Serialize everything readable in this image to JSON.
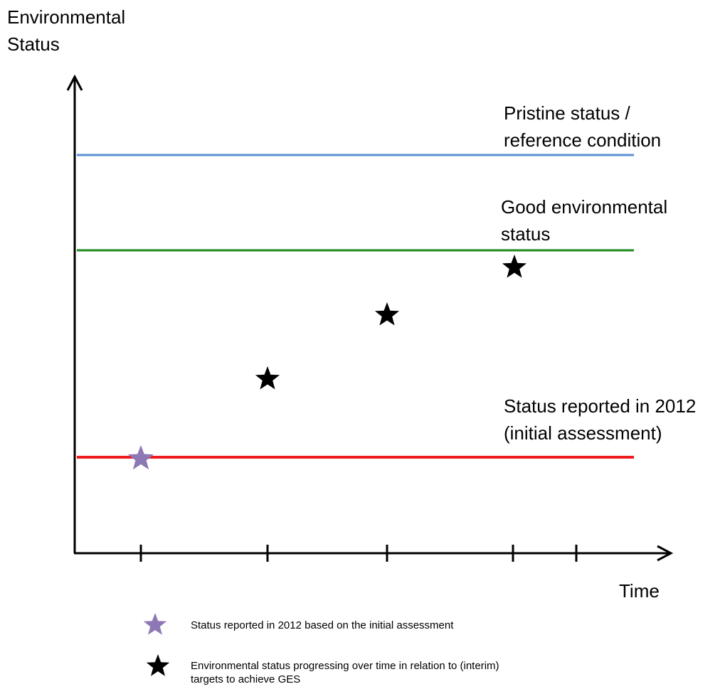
{
  "y_axis_label": [
    "Environmental",
    "Status"
  ],
  "x_axis_label": "Time",
  "reference_lines": [
    {
      "id": "pristine",
      "label": [
        "Pristine status /",
        "reference condition"
      ],
      "color": "#5b8fd6"
    },
    {
      "id": "good",
      "label": [
        "Good environmental",
        "status"
      ],
      "color": "#1e8a1e"
    },
    {
      "id": "reported",
      "label": [
        "Status  reported in 2012",
        "(initial assessment)"
      ],
      "color": "#ee1c1c"
    }
  ],
  "star_colors": {
    "initial": "#8d78b5",
    "progress": "#000000"
  },
  "legend": [
    {
      "marker": "purple-star",
      "text": [
        "Status  reported in 2012 based on the initial assessment"
      ]
    },
    {
      "marker": "black-star",
      "text": [
        "Environmental status progressing over time in relation to (interim)",
        "targets to achieve GES"
      ]
    }
  ]
}
